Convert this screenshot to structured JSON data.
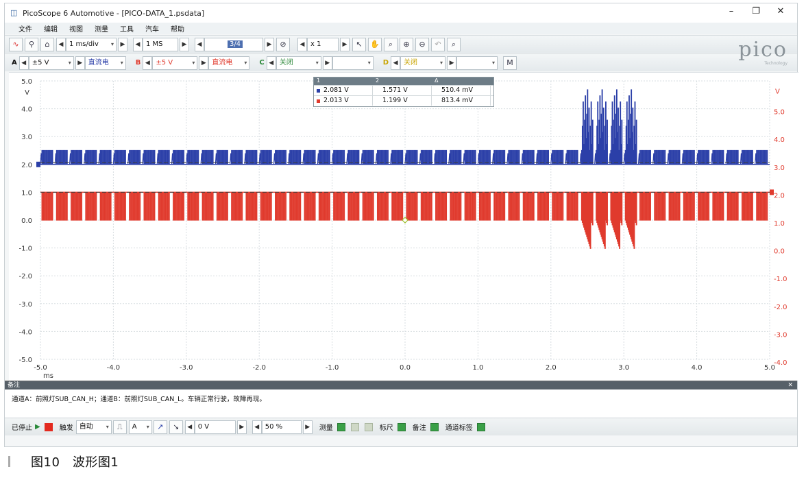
{
  "window": {
    "title": "PicoScope 6 Automotive - [PICO-DATA_1.psdata]",
    "min_label": "–",
    "max_label": "❐",
    "close_label": "✕"
  },
  "menu": [
    "文件",
    "编辑",
    "视图",
    "测量",
    "工具",
    "汽车",
    "帮助"
  ],
  "toolbar1": {
    "timebase": "1 ms/div",
    "samples": "1 MS",
    "buffer": "3/4",
    "zoom": "x 1"
  },
  "toolbar2": {
    "channel_a": {
      "label": "A",
      "range": "±5 V",
      "coupling": "直流电"
    },
    "channel_b": {
      "label": "B",
      "range": "±5 V",
      "coupling": "直流电"
    },
    "channel_c": {
      "label": "C",
      "range": "关闭"
    },
    "channel_d": {
      "label": "D",
      "range": "关闭"
    }
  },
  "logo": {
    "text": "pico",
    "sub": "Technology"
  },
  "rulers": {
    "header": [
      "1",
      "2",
      "Δ"
    ],
    "rows": [
      {
        "color": "#2b3fa8",
        "v1": "2.081 V",
        "v2": "1.571 V",
        "dv": "510.4 mV"
      },
      {
        "color": "#e03a2d",
        "v1": "2.013 V",
        "v2": "1.199 V",
        "dv": "813.4 mV"
      }
    ]
  },
  "chart_data": {
    "type": "line",
    "xlabel": "ms",
    "x_ticks": [
      "-5.0",
      "-4.0",
      "-3.0",
      "-2.0",
      "-1.0",
      "0.0",
      "1.0",
      "2.0",
      "3.0",
      "4.0",
      "5.0"
    ],
    "y_left_unit": "V",
    "y_left_ticks": [
      "5.0",
      "4.0",
      "3.0",
      "2.0",
      "1.0",
      "0.0",
      "-1.0",
      "-2.0",
      "-3.0",
      "-4.0",
      "-5.0"
    ],
    "y_right_unit": "V",
    "y_right_ticks": [
      "5.0",
      "4.0",
      "3.0",
      "2.0",
      "1.0",
      "0.0",
      "-1.0",
      "-2.0",
      "-3.0",
      "-4.0"
    ],
    "xlim": [
      -5,
      5
    ],
    "ylim": [
      -5,
      5
    ],
    "grid": true,
    "series": [
      {
        "color": "#2b3fa8",
        "recessive_v": 2.0,
        "dominant_v": 2.5,
        "burst_start_ms": 2.4,
        "burst_end_ms": 3.1,
        "burst_max_v": 4.9
      },
      {
        "color": "#e03a2d",
        "recessive_v": 1.0,
        "dominant_v": 0.0,
        "burst_start_ms": 2.4,
        "burst_end_ms": 3.1,
        "burst_min_v": -1.1
      }
    ]
  },
  "notes": {
    "header": "备注",
    "text": "通道A：前照灯SUB_CAN_H；通道B：前照灯SUB_CAN_L。车辆正常行驶，故障再现。"
  },
  "bottom_toolbar": {
    "stop_label": "已停止",
    "trigger_label": "触发",
    "trigger_mode": "自动",
    "trigger_channel": "A",
    "trigger_level": "0 V",
    "pretrigger": "50 %",
    "measure_label": "测量",
    "ruler_label": "标尺",
    "notes_label": "备注",
    "channel_labels_label": "通道标签"
  },
  "caption": "图10　波形图1"
}
